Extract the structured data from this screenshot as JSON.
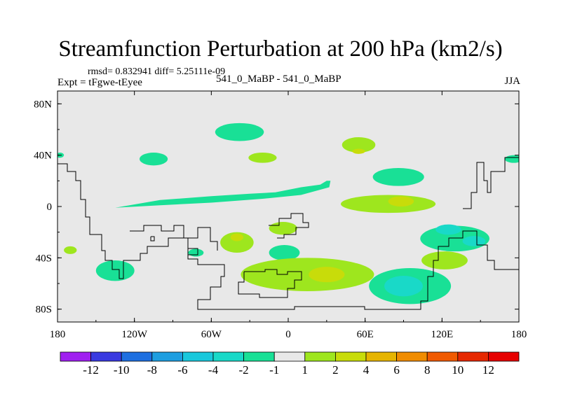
{
  "chart_data": {
    "type": "contour-map",
    "title": "Streamfunction Perturbation at 200 hPa (km2/s)",
    "subtitle_left_top": "rmsd= 0.832941 diff= 5.25111e-09",
    "subtitle_left": "Expt = tFgwe-tEyee",
    "subtitle_center": "541_0_MaBP - 541_0_MaBP",
    "subtitle_right": "JJA",
    "x_axis": {
      "range": [
        -180,
        180
      ],
      "ticks": [
        {
          "value": -180,
          "label": "180"
        },
        {
          "value": -120,
          "label": "120W"
        },
        {
          "value": -60,
          "label": "60W"
        },
        {
          "value": 0,
          "label": "0"
        },
        {
          "value": 60,
          "label": "60E"
        },
        {
          "value": 120,
          "label": "120E"
        },
        {
          "value": 180,
          "label": "180"
        }
      ]
    },
    "y_axis": {
      "range": [
        -90,
        90
      ],
      "ticks": [
        {
          "value": 80,
          "label": "80N"
        },
        {
          "value": 40,
          "label": "40N"
        },
        {
          "value": 0,
          "label": "0"
        },
        {
          "value": -40,
          "label": "40S"
        },
        {
          "value": -80,
          "label": "80S"
        }
      ]
    },
    "colorbar": {
      "labels": [
        "-12",
        "-10",
        "-8",
        "-6",
        "-4",
        "-2",
        "-1",
        "1",
        "2",
        "4",
        "6",
        "8",
        "10",
        "12"
      ],
      "colors": [
        "#a020f0",
        "#3a3ae0",
        "#1e6fe0",
        "#1e9ee0",
        "#19c8dc",
        "#19d9c8",
        "#19e096",
        "#e8e8e8",
        "#9ee61e",
        "#c8dc0a",
        "#e6b400",
        "#f08c00",
        "#f05a00",
        "#e62800",
        "#e60000"
      ]
    },
    "blobs": [
      {
        "lon": -105,
        "lat": 37,
        "rx": 11,
        "ry": 5,
        "fill": "#19e096"
      },
      {
        "lon": -38,
        "lat": 58,
        "rx": 19,
        "ry": 7,
        "fill": "#19e096"
      },
      {
        "lon": 86,
        "lat": 23,
        "rx": 20,
        "ry": 7,
        "fill": "#19e096"
      },
      {
        "lon": 55,
        "lat": 48,
        "rx": 13,
        "ry": 6,
        "fill": "#9ee61e"
      },
      {
        "lon": -20,
        "lat": 38,
        "rx": 11,
        "ry": 4,
        "fill": "#9ee61e"
      },
      {
        "lon": 78,
        "lat": 2,
        "rx": 37,
        "ry": 7,
        "fill": "#9ee61e"
      },
      {
        "lon": -40,
        "lat": -28,
        "rx": 13,
        "ry": 8,
        "fill": "#9ee61e"
      },
      {
        "lon": -4,
        "lat": -17,
        "rx": 11,
        "ry": 5,
        "fill": "#9ee61e"
      },
      {
        "lon": -3,
        "lat": -36,
        "rx": 12,
        "ry": 6,
        "fill": "#19e096"
      },
      {
        "lon": -135,
        "lat": -50,
        "rx": 15,
        "ry": 8,
        "fill": "#19e096"
      },
      {
        "lon": 15,
        "lat": -53,
        "rx": 52,
        "ry": 13,
        "fill": "#9ee61e"
      },
      {
        "lon": 95,
        "lat": -62,
        "rx": 32,
        "ry": 14,
        "fill": "#19e096"
      },
      {
        "lon": 130,
        "lat": -25,
        "rx": 27,
        "ry": 10,
        "fill": "#19e096"
      },
      {
        "lon": 122,
        "lat": -42,
        "rx": 18,
        "ry": 7,
        "fill": "#9ee61e"
      },
      {
        "lon": -170,
        "lat": -34,
        "rx": 5,
        "ry": 3,
        "fill": "#9ee61e"
      },
      {
        "lon": -72,
        "lat": -36,
        "rx": 6,
        "ry": 3,
        "fill": "#19e096"
      },
      {
        "lon": 176,
        "lat": 37,
        "rx": 7,
        "ry": 3,
        "fill": "#19e096"
      },
      {
        "lon": -178,
        "lat": 40,
        "rx": 3,
        "ry": 2,
        "fill": "#19e096"
      },
      {
        "lon": 55,
        "lat": 43,
        "rx": 5,
        "ry": 2,
        "fill": "#c8dc0a"
      },
      {
        "lon": 88,
        "lat": 4,
        "rx": 10,
        "ry": 4,
        "fill": "#c8dc0a"
      },
      {
        "lon": -40,
        "lat": -24,
        "rx": 5,
        "ry": 3,
        "fill": "#c8dc0a"
      },
      {
        "lon": 30,
        "lat": -53,
        "rx": 14,
        "ry": 6,
        "fill": "#c8dc0a"
      },
      {
        "lon": 90,
        "lat": -62,
        "rx": 15,
        "ry": 8,
        "fill": "#19d9c8"
      },
      {
        "lon": 125,
        "lat": -18,
        "rx": 10,
        "ry": 4,
        "fill": "#19d9c8"
      },
      {
        "lon": 145,
        "lat": -27,
        "rx": 9,
        "ry": 4,
        "fill": "#19d9c8"
      }
    ],
    "band": {
      "top": [
        [
          -135,
          -1
        ],
        [
          -100,
          5
        ],
        [
          -60,
          8
        ],
        [
          -30,
          10
        ],
        [
          -10,
          11
        ],
        [
          10,
          15
        ],
        [
          25,
          17
        ],
        [
          30,
          20
        ],
        [
          33,
          20
        ],
        [
          32,
          15
        ],
        [
          10,
          9
        ],
        [
          -20,
          6
        ],
        [
          -60,
          3
        ],
        [
          -100,
          1
        ],
        [
          -135,
          -1
        ]
      ],
      "fill": "#19e096"
    }
  }
}
